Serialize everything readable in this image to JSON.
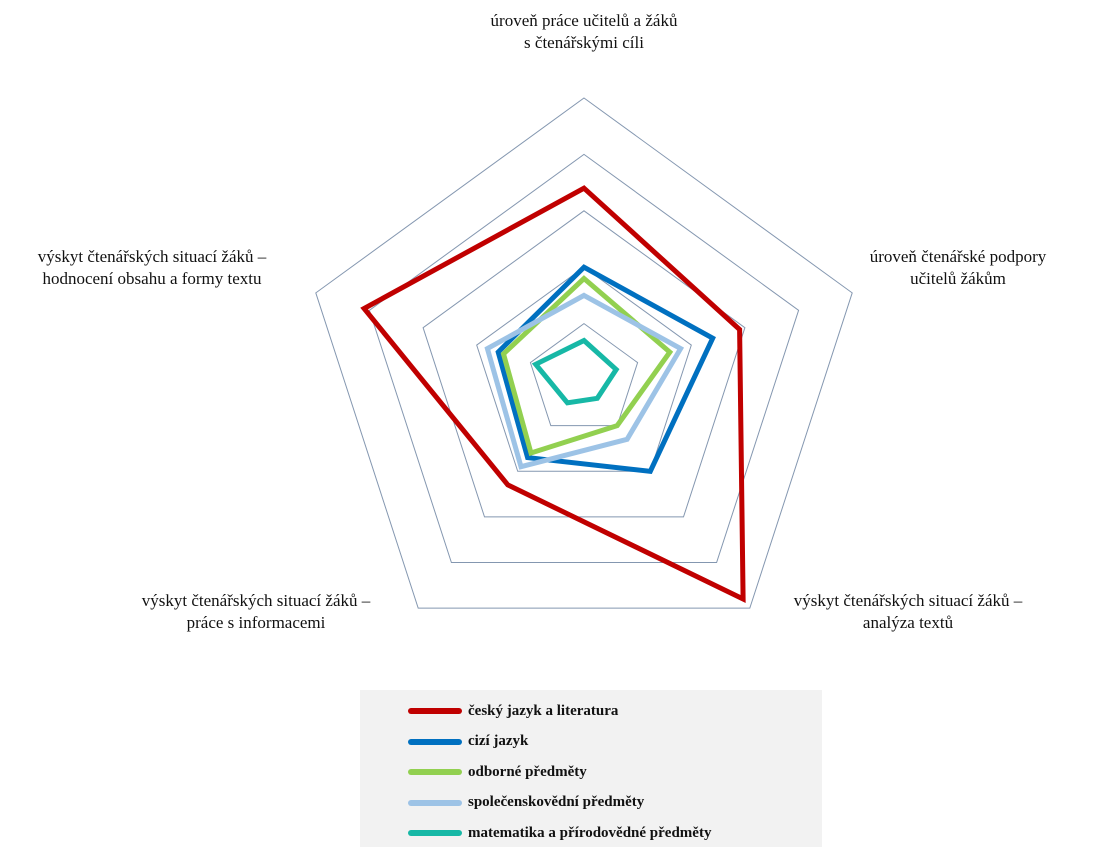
{
  "chart_data": {
    "type": "radar",
    "axes": [
      "úroveň práce učitelů a žáků s čtenářskými cíli",
      "úroveň čtenářské podpory učitelů žákům",
      "výskyt čtenářských situací žáků – analýza textů",
      "výskyt čtenářských situací žáků – práce s informacemi",
      "výskyt čtenářských situací žáků – hodnocení obsahu a formy textu"
    ],
    "axis_label_lines": [
      [
        "úroveň práce učitelů a žáků",
        "s čtenářskými cíli"
      ],
      [
        "úroveň čtenářské podpory",
        "učitelů žákům"
      ],
      [
        "výskyt čtenářských situací žáků –",
        "analýza textů"
      ],
      [
        "výskyt čtenářských situací žáků –",
        "práce s informacemi"
      ],
      [
        "výskyt čtenářských situací žáků –",
        "hodnocení obsahu a formy textu"
      ]
    ],
    "rlim": [
      0,
      5
    ],
    "grid_levels": 5,
    "grid": true,
    "legend_position": "bottom",
    "series": [
      {
        "name": "český jazyk a literatura",
        "color": "#c00000",
        "values": [
          3.4,
          2.9,
          4.8,
          2.3,
          4.1
        ]
      },
      {
        "name": "cizí jazyk",
        "color": "#0070c0",
        "values": [
          2.0,
          2.4,
          2.0,
          1.7,
          1.6
        ]
      },
      {
        "name": "odborné předmety",
        "color": "#92d050",
        "values": [
          1.8,
          1.6,
          1.0,
          1.6,
          1.5
        ]
      },
      {
        "name": "společenskovědní předměty",
        "color": "#9dc3e6",
        "values": [
          1.5,
          1.8,
          1.3,
          1.9,
          1.8
        ]
      },
      {
        "name": "matematika a přírodovědné předměty",
        "color": "#17b8a6",
        "values": [
          0.7,
          0.6,
          0.4,
          0.5,
          0.9
        ]
      }
    ]
  },
  "legend": {
    "items": [
      "český jazyk a literatura",
      "cizí jazyk",
      "odborné předměty",
      "společenskovědní předměty",
      "matematika a přírodovědné předměty"
    ]
  }
}
